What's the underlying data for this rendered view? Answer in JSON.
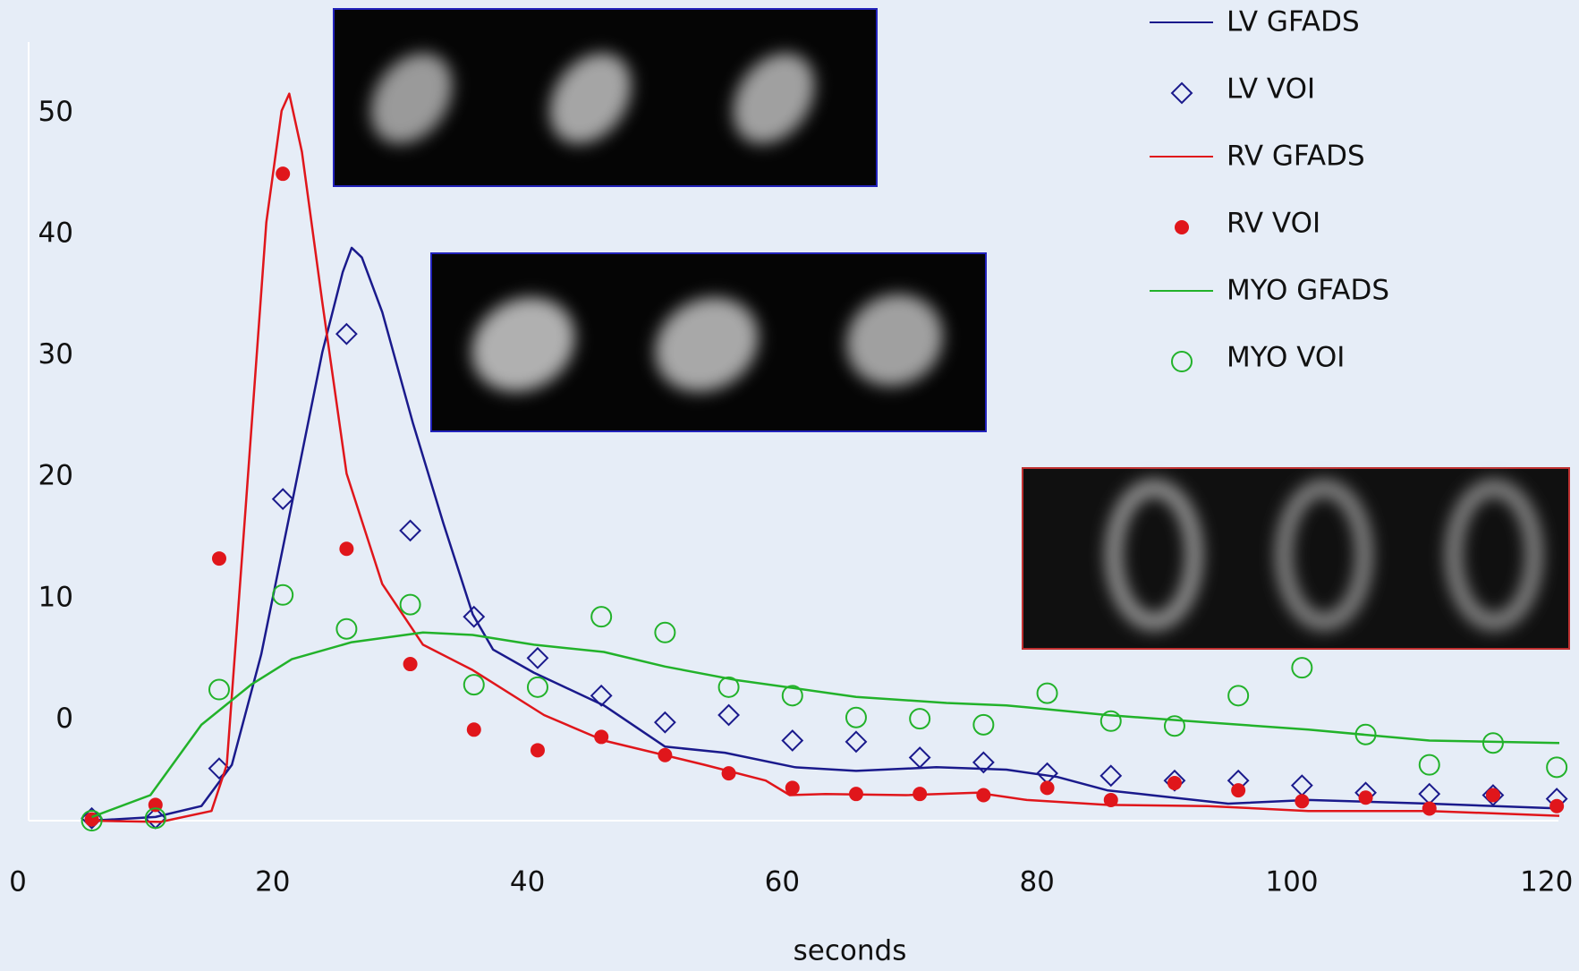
{
  "chart_data": {
    "type": "line",
    "x_label": "seconds",
    "xlim": [
      0,
      121
    ],
    "xticks": [
      0,
      20,
      40,
      60,
      80,
      100,
      120
    ],
    "ylim": [
      -8.3,
      56
    ],
    "yticks": [
      0,
      10,
      20,
      30,
      40,
      50
    ],
    "series": [
      {
        "name": "LV GFADS",
        "style": "line",
        "color": "#1a1a8c",
        "x": [
          5.8,
          10.8,
          14.4,
          16.8,
          19.1,
          21.5,
          23.9,
          25.5,
          26.2,
          27.0,
          28.6,
          31.0,
          33.4,
          35.7,
          37.3,
          40.5,
          46.0,
          50.8,
          55.5,
          61.0,
          65.8,
          72.1,
          77.6,
          81.6,
          85.5,
          95.0,
          101.3,
          110.8,
          121.0
        ],
        "values": [
          -8.3,
          -8.0,
          -7.1,
          -3.7,
          5.4,
          17.8,
          30.3,
          36.9,
          38.9,
          38.1,
          33.6,
          24.5,
          16.2,
          8.7,
          5.8,
          3.9,
          1.2,
          -2.2,
          -2.7,
          -3.9,
          -4.2,
          -3.9,
          -4.1,
          -4.7,
          -5.8,
          -6.9,
          -6.6,
          -6.9,
          -7.3
        ]
      },
      {
        "name": "LV VOI",
        "style": "marker",
        "marker": "diamond",
        "color": "#1a1a8c",
        "x": [
          5.8,
          10.8,
          15.8,
          20.8,
          25.8,
          30.8,
          35.8,
          40.8,
          45.8,
          50.8,
          55.8,
          60.8,
          65.8,
          70.8,
          75.8,
          80.8,
          85.8,
          90.8,
          95.8,
          100.8,
          105.8,
          110.8,
          115.8,
          120.8
        ],
        "values": [
          -8.1,
          -8.1,
          -4.0,
          18.2,
          31.8,
          15.6,
          8.5,
          5.1,
          2.0,
          -0.2,
          0.4,
          -1.7,
          -1.8,
          -3.1,
          -3.5,
          -4.4,
          -4.6,
          -5.0,
          -5.0,
          -5.4,
          -6.0,
          -6.1,
          -6.2,
          -6.5
        ]
      },
      {
        "name": "RV GFADS",
        "style": "line",
        "color": "#e0161b",
        "x": [
          5.8,
          11.2,
          15.2,
          16.4,
          17.9,
          19.5,
          20.7,
          21.3,
          22.3,
          23.9,
          25.8,
          28.6,
          31.8,
          35.7,
          41.3,
          46.0,
          53.9,
          58.7,
          60.6,
          63.4,
          69.7,
          75.3,
          79.2,
          85.5,
          93.4,
          101.3,
          110.8,
          121.0
        ],
        "values": [
          -8.3,
          -8.4,
          -7.5,
          -3.7,
          17.8,
          41.0,
          50.2,
          51.6,
          46.8,
          34.4,
          20.3,
          11.2,
          6.2,
          4.1,
          0.4,
          -1.7,
          -3.7,
          -5.0,
          -6.2,
          -6.1,
          -6.2,
          -6.0,
          -6.6,
          -7.0,
          -7.1,
          -7.5,
          -7.5,
          -7.9
        ]
      },
      {
        "name": "RV VOI",
        "style": "marker",
        "marker": "dot",
        "color": "#e0161b",
        "x": [
          5.8,
          10.8,
          15.8,
          20.8,
          25.8,
          30.8,
          35.8,
          40.8,
          45.8,
          50.8,
          55.8,
          60.8,
          65.8,
          70.8,
          75.8,
          80.8,
          85.8,
          90.8,
          95.8,
          100.8,
          105.8,
          110.8,
          115.8,
          120.8
        ],
        "values": [
          -8.2,
          -7.0,
          13.3,
          45.0,
          14.1,
          4.6,
          -0.8,
          -2.5,
          -1.4,
          -2.9,
          -4.4,
          -5.6,
          -6.1,
          -6.1,
          -6.2,
          -5.6,
          -6.6,
          -5.2,
          -5.8,
          -6.7,
          -6.4,
          -7.3,
          -6.2,
          -7.1
        ]
      },
      {
        "name": "MYO GFADS",
        "style": "line",
        "color": "#22b22a",
        "x": [
          5.8,
          10.4,
          14.4,
          18.3,
          21.5,
          26.2,
          31.8,
          35.7,
          40.5,
          46.0,
          50.8,
          56.3,
          65.8,
          72.9,
          77.6,
          85.5,
          93.4,
          101.3,
          110.8,
          121.0
        ],
        "values": [
          -8.0,
          -6.2,
          -0.4,
          2.9,
          5.0,
          6.4,
          7.2,
          7.0,
          6.2,
          5.6,
          4.4,
          3.3,
          1.9,
          1.4,
          1.2,
          0.4,
          -0.2,
          -0.8,
          -1.7,
          -1.9
        ]
      },
      {
        "name": "MYO VOI",
        "style": "marker",
        "marker": "circle",
        "color": "#22b22a",
        "x": [
          5.8,
          10.8,
          15.8,
          20.8,
          25.8,
          30.8,
          35.8,
          40.8,
          45.8,
          50.8,
          55.8,
          60.8,
          65.8,
          70.8,
          75.8,
          80.8,
          85.8,
          90.8,
          95.8,
          100.8,
          105.8,
          110.8,
          115.8,
          120.8
        ],
        "values": [
          -8.3,
          -8.1,
          2.5,
          10.3,
          7.5,
          9.5,
          2.9,
          2.7,
          8.5,
          7.2,
          2.7,
          2.0,
          0.2,
          0.1,
          -0.4,
          2.2,
          -0.1,
          -0.5,
          2.0,
          4.3,
          -1.2,
          -3.7,
          -1.9,
          -3.9
        ]
      }
    ]
  }
}
